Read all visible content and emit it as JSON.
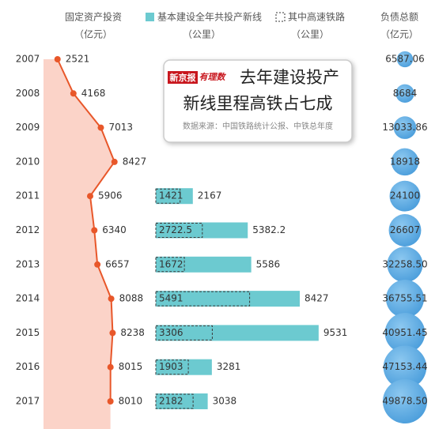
{
  "chart_data": {
    "type": "combo",
    "title_lines": [
      "去年建设投产",
      "新线里程高铁占七成"
    ],
    "brand": "新京报",
    "column": "有理数",
    "source": "数据来源：中国铁路统计公报、中铁总年度",
    "categories": [
      "2007",
      "2008",
      "2009",
      "2010",
      "2011",
      "2012",
      "2013",
      "2014",
      "2015",
      "2016",
      "2017"
    ],
    "series": [
      {
        "name": "固定资产投资",
        "unit": "（亿元）",
        "type": "line",
        "color": "#e8572a",
        "values": [
          2521,
          4168,
          7013,
          8427,
          5906,
          6340,
          6657,
          8088,
          8238,
          8015,
          8010
        ]
      },
      {
        "name": "基本建设全年共投产新线",
        "unit": "（公里）",
        "type": "bar",
        "color": "#6ccad0",
        "values": [
          null,
          null,
          null,
          null,
          2167,
          5382.2,
          5586,
          8427,
          9531,
          3281,
          3038
        ]
      },
      {
        "name": "其中高速铁路",
        "unit": "（公里）",
        "type": "bar-outline",
        "color": "#3a3a3a",
        "values": [
          null,
          null,
          null,
          null,
          1421,
          2722.5,
          1672,
          5491,
          3306,
          1903,
          2182
        ]
      },
      {
        "name": "负债总额",
        "unit": "（亿元）",
        "type": "bubble",
        "color": "#4fa3df",
        "values": [
          6587.06,
          8684,
          13033.86,
          18918,
          24100,
          26607,
          32258.5,
          36755.51,
          40951.45,
          47153.44,
          49878.5
        ],
        "value_labels": [
          "6587.06",
          "8684",
          "13033.86",
          "18918",
          "24100",
          "26607",
          "32258.50",
          "36755.51",
          "40951.45",
          "47153.44",
          "49878.50"
        ]
      }
    ]
  }
}
